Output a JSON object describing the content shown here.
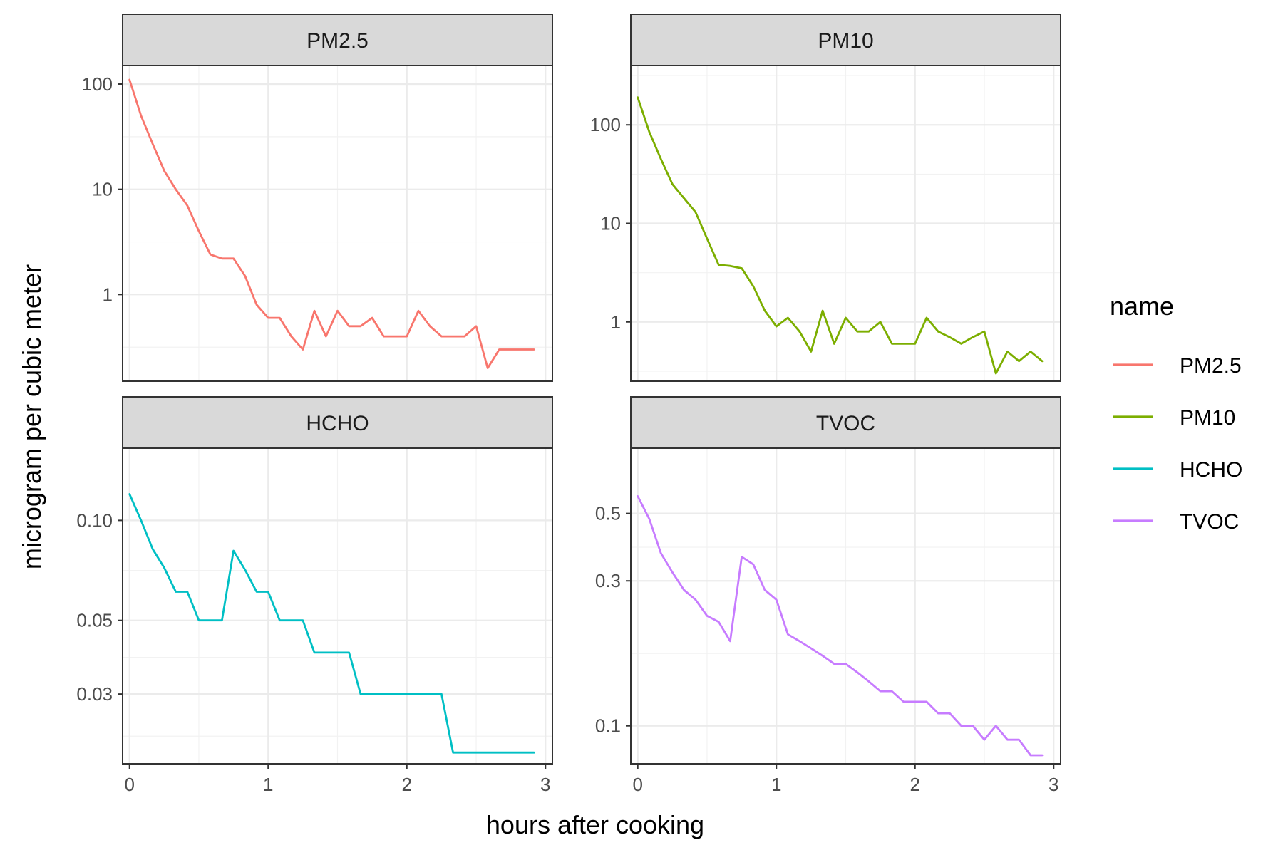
{
  "chart_data": {
    "type": "line",
    "xlabel": "hours after cooking",
    "ylabel": "microgram per cubic meter",
    "legend": {
      "title": "name",
      "position": "right",
      "entries": [
        {
          "label": "PM2.5",
          "color": "#F8766D"
        },
        {
          "label": "PM10",
          "color": "#7CAE00"
        },
        {
          "label": "HCHO",
          "color": "#00BFC4"
        },
        {
          "label": "TVOC",
          "color": "#C77CFF"
        }
      ]
    },
    "x": [
      0,
      0.0833,
      0.1667,
      0.25,
      0.3333,
      0.4167,
      0.5,
      0.5833,
      0.6667,
      0.75,
      0.8333,
      0.9167,
      1.0,
      1.0833,
      1.1667,
      1.25,
      1.3333,
      1.4167,
      1.5,
      1.5833,
      1.6667,
      1.75,
      1.8333,
      1.9167,
      2.0,
      2.0833,
      2.1667,
      2.25,
      2.3333,
      2.4167,
      2.5,
      2.5833,
      2.6667,
      2.75,
      2.8333,
      2.9167
    ],
    "grid": true,
    "scale_y": "log10",
    "panels": [
      {
        "name": "PM2.5",
        "color": "#F8766D",
        "xlim": [
          -0.05,
          3.05
        ],
        "ylim": [
          0.15,
          150
        ],
        "yticks": [
          {
            "v": 1,
            "label": "1"
          },
          {
            "v": 10,
            "label": "10"
          },
          {
            "v": 100,
            "label": "100"
          }
        ],
        "yminor": [
          0.316,
          3.16,
          31.6
        ],
        "xticks": [
          0,
          1,
          2,
          3
        ],
        "values": [
          110,
          50,
          27,
          15,
          10,
          7,
          4,
          2.4,
          2.2,
          2.2,
          1.5,
          0.8,
          0.6,
          0.6,
          0.4,
          0.3,
          0.7,
          0.4,
          0.7,
          0.5,
          0.5,
          0.6,
          0.4,
          0.4,
          0.4,
          0.7,
          0.5,
          0.4,
          0.4,
          0.4,
          0.5,
          0.2,
          0.3,
          0.3,
          0.3,
          0.3
        ]
      },
      {
        "name": "PM10",
        "color": "#7CAE00",
        "xlim": [
          -0.05,
          3.05
        ],
        "ylim": [
          0.25,
          400
        ],
        "yticks": [
          {
            "v": 1,
            "label": "1"
          },
          {
            "v": 10,
            "label": "10"
          },
          {
            "v": 100,
            "label": "100"
          }
        ],
        "yminor": [
          0.316,
          3.16,
          31.6,
          316
        ],
        "xticks": [
          0,
          1,
          2,
          3
        ],
        "values": [
          190,
          85,
          45,
          25,
          18,
          13,
          7,
          3.8,
          3.7,
          3.5,
          2.3,
          1.3,
          0.9,
          1.1,
          0.8,
          0.5,
          1.3,
          0.6,
          1.1,
          0.8,
          0.8,
          1.0,
          0.6,
          0.6,
          0.6,
          1.1,
          0.8,
          0.7,
          0.6,
          0.7,
          0.8,
          0.3,
          0.5,
          0.4,
          0.5,
          0.4
        ]
      },
      {
        "name": "HCHO",
        "color": "#00BFC4",
        "xlim": [
          -0.05,
          3.05
        ],
        "ylim": [
          0.0185,
          0.165
        ],
        "yticks": [
          {
            "v": 0.03,
            "label": "0.03"
          },
          {
            "v": 0.05,
            "label": "0.05"
          },
          {
            "v": 0.1,
            "label": "0.10"
          }
        ],
        "yminor": [
          0.0224,
          0.0387,
          0.0707
        ],
        "xticks": [
          0,
          1,
          2,
          3
        ],
        "values": [
          0.12,
          0.1,
          0.082,
          0.072,
          0.061,
          0.061,
          0.05,
          0.05,
          0.05,
          0.081,
          0.071,
          0.061,
          0.061,
          0.05,
          0.05,
          0.05,
          0.04,
          0.04,
          0.04,
          0.04,
          0.03,
          0.03,
          0.03,
          0.03,
          0.03,
          0.03,
          0.03,
          0.03,
          0.02,
          0.02,
          0.02,
          0.02,
          0.02,
          0.02,
          0.02,
          0.02
        ]
      },
      {
        "name": "TVOC",
        "color": "#C77CFF",
        "xlim": [
          -0.05,
          3.05
        ],
        "ylim": [
          0.075,
          0.82
        ],
        "yticks": [
          {
            "v": 0.1,
            "label": "0.1"
          },
          {
            "v": 0.3,
            "label": "0.3"
          },
          {
            "v": 0.5,
            "label": "0.5"
          }
        ],
        "yminor": [
          0.173,
          0.387
        ],
        "xticks": [
          0,
          1,
          2,
          3
        ],
        "values": [
          0.57,
          0.48,
          0.37,
          0.32,
          0.28,
          0.26,
          0.23,
          0.22,
          0.19,
          0.36,
          0.34,
          0.28,
          0.26,
          0.2,
          0.19,
          0.18,
          0.17,
          0.16,
          0.16,
          0.15,
          0.14,
          0.13,
          0.13,
          0.12,
          0.12,
          0.12,
          0.11,
          0.11,
          0.1,
          0.1,
          0.09,
          0.1,
          0.09,
          0.09,
          0.08,
          0.08
        ]
      }
    ]
  }
}
